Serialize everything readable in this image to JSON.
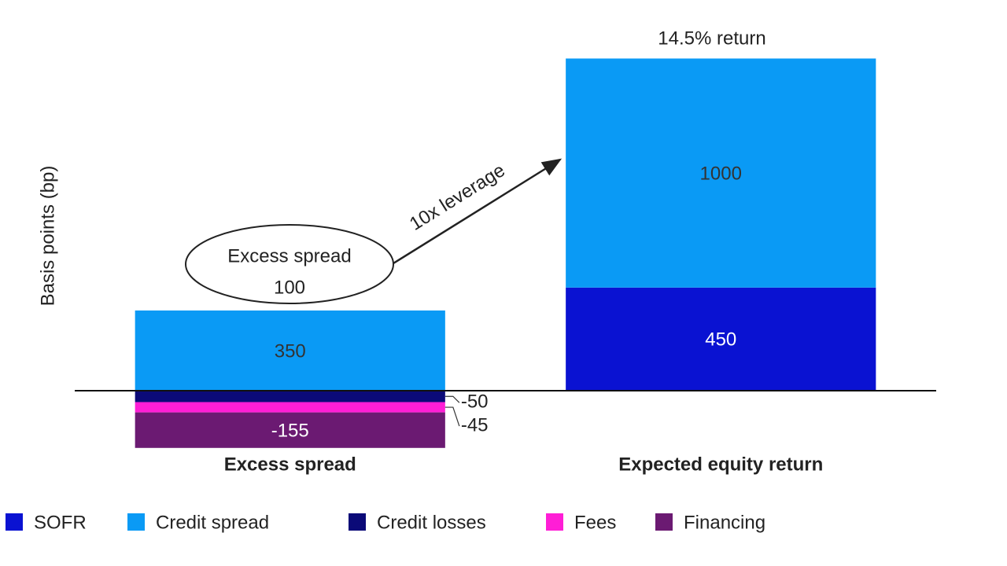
{
  "chart_data": {
    "type": "bar",
    "stacked": true,
    "y_label": "Basis points (bp)",
    "categories": [
      "Excess spread",
      "Expected equity return"
    ],
    "series": [
      {
        "name": "SOFR",
        "color": "#0a12d2",
        "values": [
          null,
          450
        ]
      },
      {
        "name": "Credit spread",
        "color": "#0a9af5",
        "values": [
          350,
          1000
        ]
      },
      {
        "name": "Credit losses",
        "color": "#0b0a78",
        "values": [
          -50,
          null
        ]
      },
      {
        "name": "Fees",
        "color": "#ff1ed6",
        "values": [
          -45,
          null
        ]
      },
      {
        "name": "Financing",
        "color": "#6b1a72",
        "values": [
          -155,
          null
        ]
      }
    ],
    "ylim": [
      -400,
      1550
    ],
    "annotations": {
      "total": "14.5% return",
      "bubble_title": "Excess spread",
      "bubble_value": 100,
      "arrow": "10x leverage"
    },
    "legend": "bottom"
  }
}
